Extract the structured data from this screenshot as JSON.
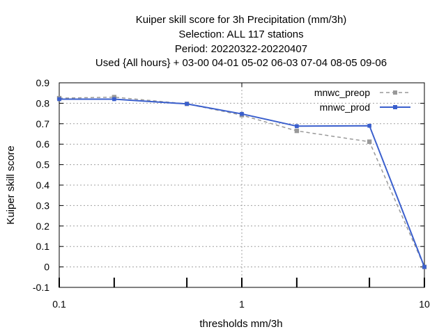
{
  "chart_data": {
    "type": "line",
    "title_lines": [
      "Kuiper skill score  for 3h Precipitation (mm/3h)",
      "Selection: ALL     117 stations",
      "Period: 20220322-20220407",
      "Used {All hours} + 03-00 04-01 05-02 06-03 07-04 08-05 09-06"
    ],
    "xlabel": "thresholds mm/3h",
    "ylabel": "Kuiper skill score",
    "x_scale": "log",
    "xlim": [
      0.1,
      10
    ],
    "ylim": [
      -0.1,
      0.9
    ],
    "x_ticks": [
      0.1,
      1,
      10
    ],
    "x_tick_labels": [
      "0.1",
      "1",
      "10"
    ],
    "x_marks": [
      0.1,
      0.2,
      0.5,
      1,
      2,
      5,
      10
    ],
    "y_ticks": [
      -0.1,
      0,
      0.1,
      0.2,
      0.3,
      0.4,
      0.5,
      0.6,
      0.7,
      0.8,
      0.9
    ],
    "y_tick_labels": [
      "-0.1",
      "0",
      "0.1",
      "0.2",
      "0.3",
      "0.4",
      "0.5",
      "0.6",
      "0.7",
      "0.8",
      "0.9"
    ],
    "grid": true,
    "legend_position": "top-right",
    "x": [
      0.1,
      0.2,
      0.5,
      1,
      2,
      5,
      10
    ],
    "series": [
      {
        "name": "mnwc_preop",
        "color": "#999999",
        "dashed": true,
        "values": [
          0.825,
          0.83,
          0.797,
          0.742,
          0.665,
          0.612,
          0.0
        ]
      },
      {
        "name": "mnwc_prod",
        "color": "#3a5fcd",
        "dashed": false,
        "values": [
          0.82,
          0.82,
          0.797,
          0.748,
          0.688,
          0.69,
          0.0
        ]
      }
    ]
  }
}
